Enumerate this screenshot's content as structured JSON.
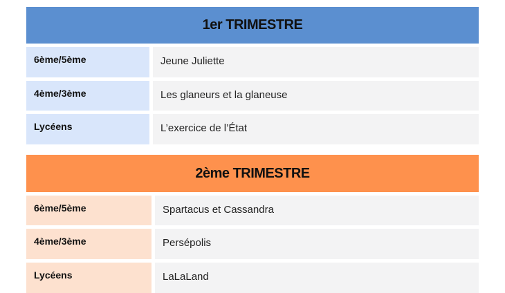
{
  "colors": {
    "trimestre1": "#5b8fd0",
    "trimestre1_light": "#d9e6fb",
    "trimestre2": "#fe914d",
    "trimestre2_light": "#fde1cf",
    "cell": "#f3f3f4"
  },
  "trimestres": [
    {
      "title": "1er TRIMESTRE",
      "rows": [
        {
          "level": "6ème/5ème",
          "film": "Jeune Juliette"
        },
        {
          "level": "4ème/3ème",
          "film": "Les glaneurs et la glaneuse"
        },
        {
          "level": "Lycéens",
          "film": "L’exercice de l’État"
        }
      ]
    },
    {
      "title": "2ème TRIMESTRE",
      "rows": [
        {
          "level": "6ème/5ème",
          "film": "Spartacus et Cassandra"
        },
        {
          "level": "4ème/3ème",
          "film": "Persépolis"
        },
        {
          "level": "Lycéens",
          "film": "LaLaLand"
        }
      ]
    }
  ]
}
